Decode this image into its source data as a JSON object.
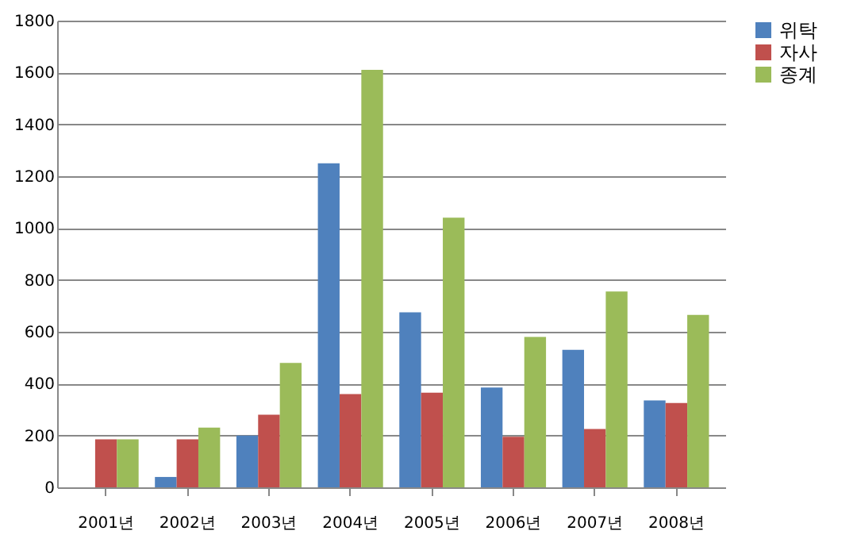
{
  "chart_data": {
    "type": "bar",
    "categories": [
      "2001년",
      "2002년",
      "2003년",
      "2004년",
      "2005년",
      "2006년",
      "2007년",
      "2008년"
    ],
    "series": [
      {
        "name": "위탁",
        "color": "#4f81bd",
        "values": [
          0,
          40,
          200,
          1250,
          675,
          385,
          530,
          335
        ]
      },
      {
        "name": "자사",
        "color": "#c0504d",
        "values": [
          185,
          185,
          280,
          360,
          365,
          195,
          225,
          325
        ]
      },
      {
        "name": "종계",
        "color": "#9bbb59",
        "values": [
          185,
          230,
          480,
          1610,
          1040,
          580,
          755,
          665
        ]
      }
    ],
    "ylim": [
      0,
      1800
    ],
    "yticks": [
      0,
      200,
      400,
      600,
      800,
      1000,
      1200,
      1400,
      1600,
      1800
    ],
    "grid": "y",
    "legend": "right"
  }
}
